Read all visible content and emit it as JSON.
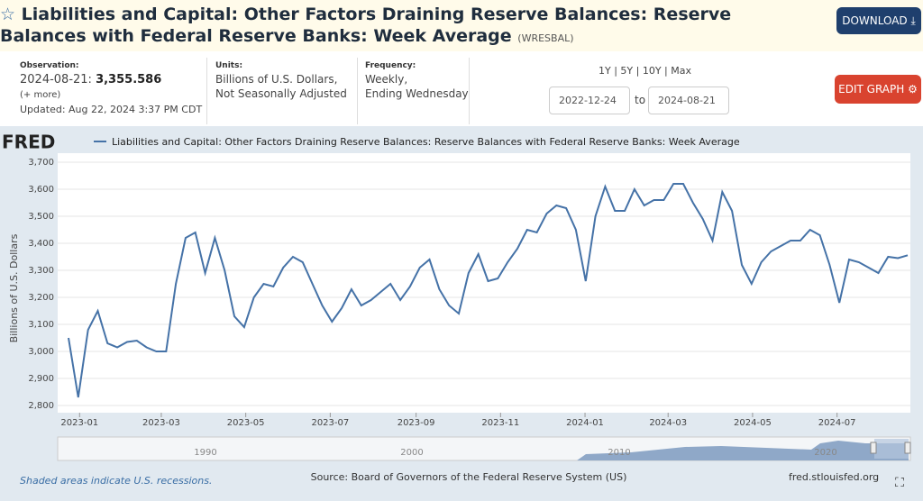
{
  "header": {
    "title": "Liabilities and Capital: Other Factors Draining Reserve Balances: Reserve Balances with Federal Reserve Banks: Week Average",
    "series_id": "(WRESBAL)",
    "download": "DOWNLOAD"
  },
  "observation": {
    "label": "Observation:",
    "date": "2024-08-21:",
    "value": "3,355.586",
    "more": "(+ more)",
    "updated": "Updated: Aug 22, 2024 3:37 PM CDT"
  },
  "units": {
    "label": "Units:",
    "lines": [
      "Billions of U.S. Dollars,",
      "Not Seasonally Adjusted"
    ]
  },
  "frequency": {
    "label": "Frequency:",
    "lines": [
      "Weekly,",
      "Ending Wednesday"
    ]
  },
  "range": {
    "options": [
      "1Y",
      "5Y",
      "10Y",
      "Max"
    ],
    "start": "2022-12-24",
    "separator": "to",
    "end": "2024-08-21"
  },
  "edit_graph": "EDIT GRAPH",
  "fred_logo": "FRED",
  "navigator": {
    "labels": [
      "1990",
      "2000",
      "2010",
      "2020"
    ]
  },
  "footer": {
    "recession_note": "Shaded areas indicate U.S. recessions.",
    "source": "Source: Board of Governors of the Federal Reserve System (US)",
    "site": "fred.stlouisfed.org"
  },
  "chart_data": {
    "type": "line",
    "y_label": "Billions of U.S. Dollars",
    "xlim": [
      "2022-12-24",
      "2024-08-21"
    ],
    "xticks": [
      "2023-01",
      "2023-03",
      "2023-05",
      "2023-07",
      "2023-09",
      "2023-11",
      "2024-01",
      "2024-03",
      "2024-05",
      "2024-07"
    ],
    "ylim": [
      2800,
      3700
    ],
    "yticks": [
      {
        "value": 2800,
        "label": "2,800"
      },
      {
        "value": 2900,
        "label": "2,900"
      },
      {
        "value": 3000,
        "label": "3,000"
      },
      {
        "value": 3100,
        "label": "3,100"
      },
      {
        "value": 3200,
        "label": "3,200"
      },
      {
        "value": 3300,
        "label": "3,300"
      },
      {
        "value": 3400,
        "label": "3,400"
      },
      {
        "value": 3500,
        "label": "3,500"
      },
      {
        "value": 3600,
        "label": "3,600"
      },
      {
        "value": 3700,
        "label": "3,700"
      }
    ],
    "grid": true,
    "series": [
      {
        "name": "Liabilities and Capital: Other Factors Draining Reserve Balances: Reserve Balances with Federal Reserve Banks: Week Average",
        "color": "#4572a7",
        "values": [
          3050,
          2830,
          3080,
          3150,
          3030,
          3015,
          3035,
          3040,
          3015,
          3000,
          3000,
          3250,
          3420,
          3440,
          3290,
          3420,
          3300,
          3130,
          3090,
          3200,
          3250,
          3240,
          3310,
          3350,
          3330,
          3250,
          3170,
          3110,
          3160,
          3230,
          3170,
          3190,
          3220,
          3250,
          3190,
          3240,
          3310,
          3340,
          3230,
          3170,
          3140,
          3290,
          3360,
          3260,
          3270,
          3330,
          3380,
          3450,
          3440,
          3510,
          3540,
          3530,
          3450,
          3260,
          3500,
          3610,
          3520,
          3520,
          3600,
          3540,
          3560,
          3560,
          3620,
          3620,
          3550,
          3490,
          3410,
          3590,
          3520,
          3320,
          3250,
          3330,
          3370,
          3390,
          3410,
          3410,
          3450,
          3430,
          3320,
          3180,
          3340,
          3330,
          3310,
          3290,
          3350,
          3345,
          3355.586
        ]
      }
    ]
  }
}
